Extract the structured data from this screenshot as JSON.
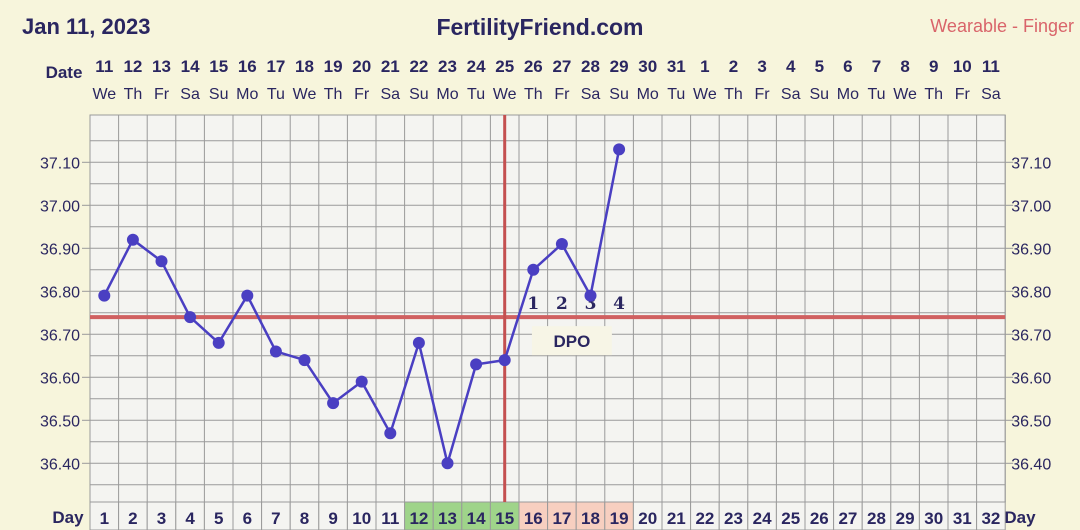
{
  "header": {
    "date": "Jan 11, 2023",
    "site": "FertilityFriend.com",
    "source": "Wearable - Finger"
  },
  "colors": {
    "background": "#f7f5dc",
    "grid": "#9a9a9a",
    "line": "#4a3fc2",
    "coverline": "#d06060",
    "ovulation_line": "#c45050",
    "text": "#2a2660",
    "fertile_cell": "#9fd48a",
    "postovulation_cell": "#f7cfc0"
  },
  "chart_data": {
    "type": "line",
    "title": "",
    "xlabel": "Day",
    "ylabel": "",
    "date_row_label": "Date",
    "day_row_label": "Day",
    "days": [
      1,
      2,
      3,
      4,
      5,
      6,
      7,
      8,
      9,
      10,
      11,
      12,
      13,
      14,
      15,
      16,
      17,
      18,
      19,
      20,
      21,
      22,
      23,
      24,
      25,
      26,
      27,
      28,
      29,
      30,
      31,
      32
    ],
    "dates": [
      "11",
      "12",
      "13",
      "14",
      "15",
      "16",
      "17",
      "18",
      "19",
      "20",
      "21",
      "22",
      "23",
      "24",
      "25",
      "26",
      "27",
      "28",
      "29",
      "30",
      "31",
      "1",
      "2",
      "3",
      "4",
      "5",
      "6",
      "7",
      "8",
      "9",
      "10",
      "11"
    ],
    "weekdays": [
      "We",
      "Th",
      "Fr",
      "Sa",
      "Su",
      "Mo",
      "Tu",
      "We",
      "Th",
      "Fr",
      "Sa",
      "Su",
      "Mo",
      "Tu",
      "We",
      "Th",
      "Fr",
      "Sa",
      "Su",
      "Mo",
      "Tu",
      "We",
      "Th",
      "Fr",
      "Sa",
      "Su",
      "Mo",
      "Tu",
      "We",
      "Th",
      "Fr",
      "Sa"
    ],
    "y_ticks": [
      "37.10",
      "37.00",
      "36.90",
      "36.80",
      "36.70",
      "36.60",
      "36.50",
      "36.40"
    ],
    "ylim": [
      36.31,
      37.21
    ],
    "grid": true,
    "series": [
      {
        "x": [
          1,
          2,
          3,
          4,
          5,
          6,
          7,
          8,
          9,
          10,
          11,
          12,
          13,
          14,
          15,
          16,
          17,
          18,
          19
        ],
        "values": [
          36.79,
          36.92,
          36.87,
          36.74,
          36.68,
          36.79,
          36.66,
          36.64,
          36.54,
          36.59,
          36.47,
          36.68,
          36.4,
          36.63,
          36.64,
          36.85,
          36.91,
          36.79,
          37.13
        ]
      }
    ],
    "coverline": 36.74,
    "ovulation_day": 15,
    "dpo": {
      "label": "DPO",
      "days": [
        16,
        17,
        18,
        19
      ],
      "numbers": [
        "1",
        "2",
        "3",
        "4"
      ]
    },
    "fertile_days": [
      12,
      13,
      14,
      15
    ],
    "post_ovulation_days": [
      16,
      17,
      18,
      19
    ]
  }
}
